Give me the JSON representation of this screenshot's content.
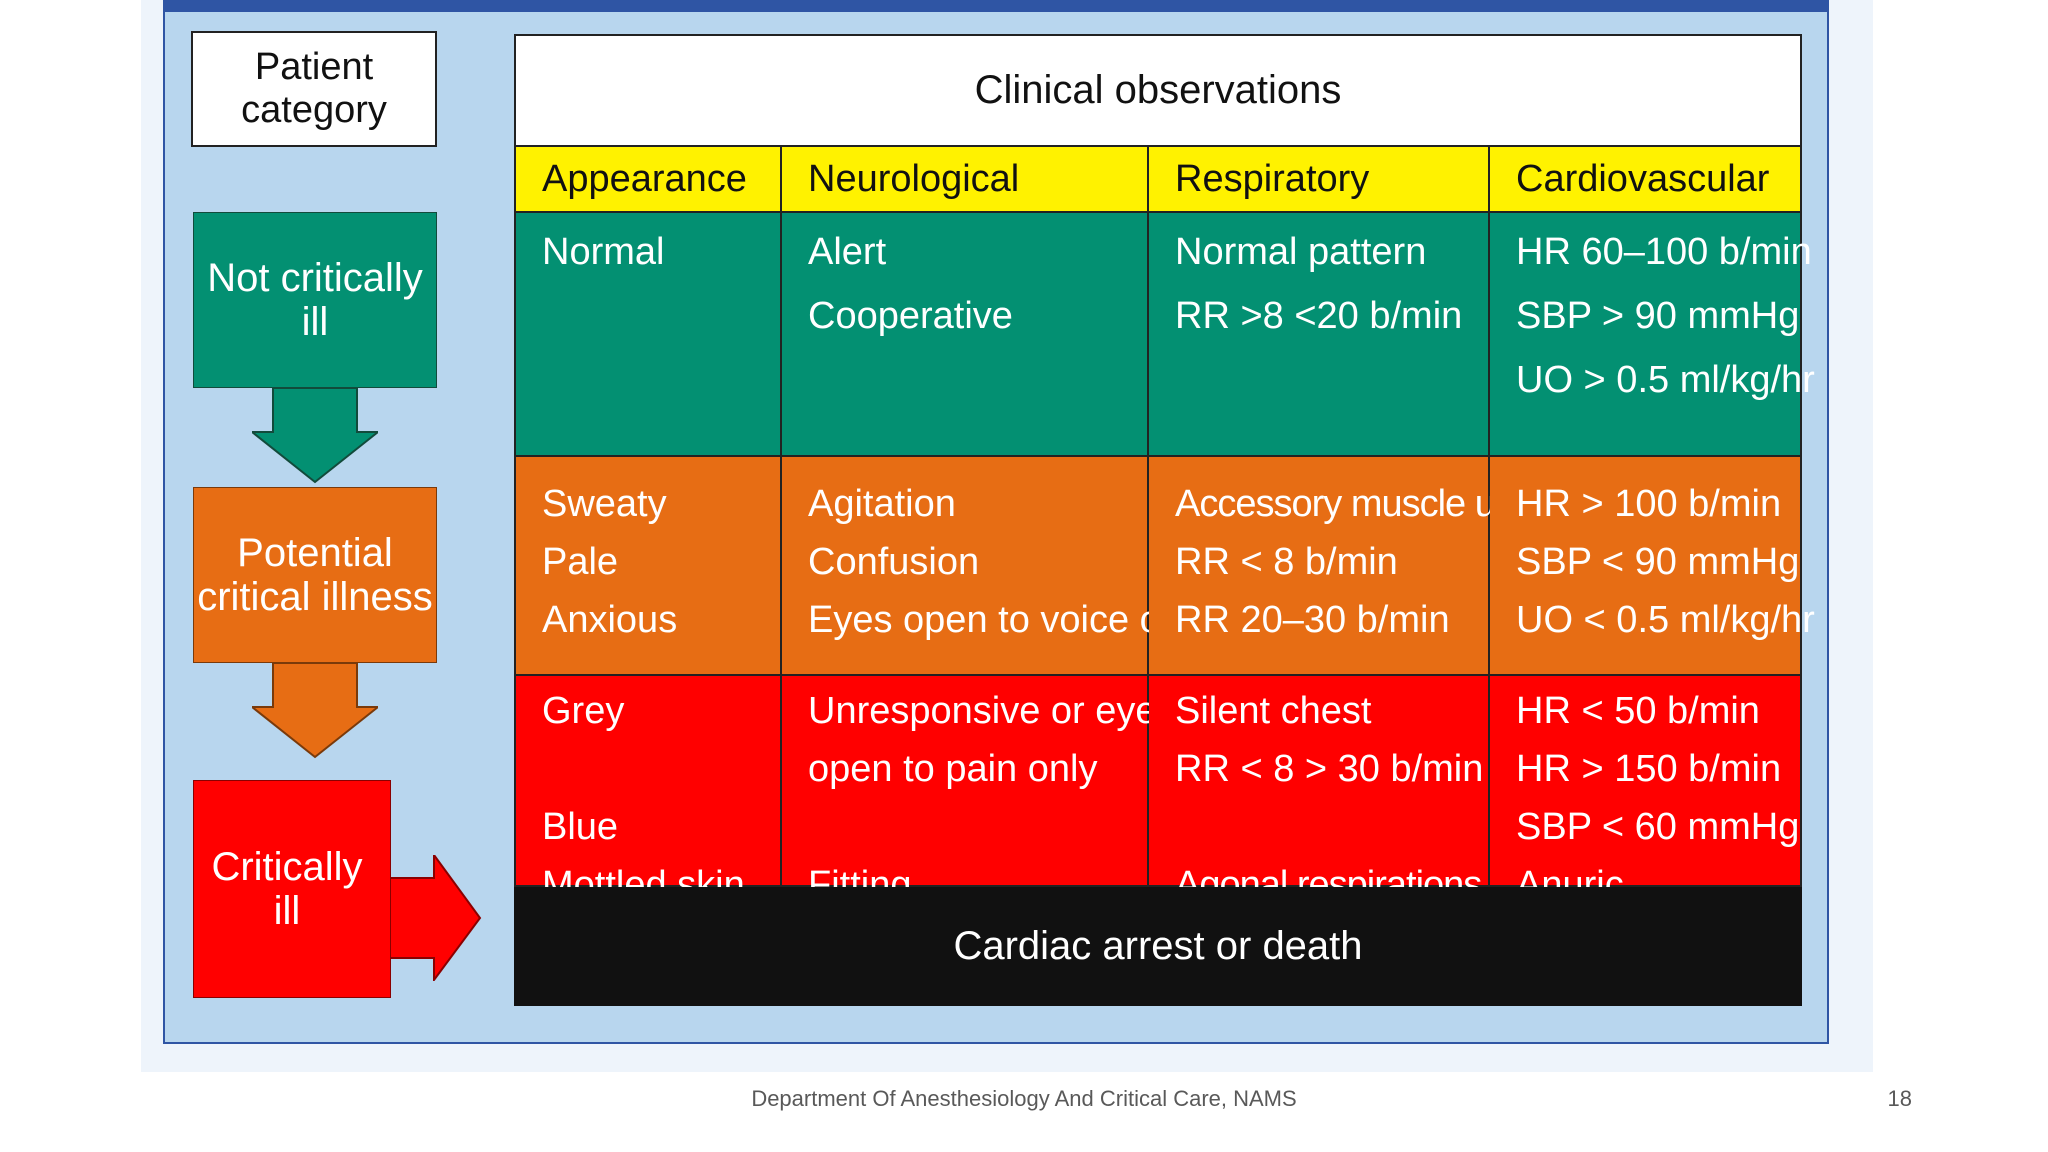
{
  "diagram": {
    "patient_category_label": "Patient category",
    "categories": [
      {
        "label": "Not critically ill",
        "color": "#039072"
      },
      {
        "label": "Potential critical illness",
        "color": "#e76d14"
      },
      {
        "label": "Critically ill",
        "color": "#ff0000"
      }
    ]
  },
  "table": {
    "title": "Clinical observations",
    "columns": [
      "Appearance",
      "Neurological",
      "Respiratory",
      "Cardiovascular"
    ],
    "header_color": "#fff200",
    "rows": [
      {
        "category": "Not critically ill",
        "cells": [
          [
            "Normal"
          ],
          [
            "Alert",
            "Cooperative"
          ],
          [
            "Normal pattern",
            "RR >8 <20 b/min"
          ],
          [
            "HR 60–100 b/min",
            "SBP > 90 mmHg",
            "UO > 0.5 ml/kg/hr"
          ]
        ]
      },
      {
        "category": "Potential critical illness",
        "cells": [
          [
            "Sweaty",
            "Pale",
            "Anxious"
          ],
          [
            "Agitation",
            "Confusion",
            "Eyes open to voice only"
          ],
          [
            "Accessory muscle use",
            "RR < 8 b/min",
            "RR 20–30 b/min"
          ],
          [
            "HR > 100 b/min",
            "SBP < 90 mmHg",
            "UO < 0.5 ml/kg/hr"
          ]
        ]
      },
      {
        "category": "Critically ill",
        "cells": [
          [
            "Grey",
            "Blue",
            "Mottled skin"
          ],
          [
            "Unresponsive or eyes",
            "open to pain only",
            "Fitting"
          ],
          [
            "Silent chest",
            "RR < 8 > 30 b/min",
            "Agonal respirations"
          ],
          [
            "HR < 50 b/min",
            "HR > 150 b/min",
            "SBP < 60 mmHg",
            "Anuric"
          ]
        ]
      }
    ],
    "final_row": "Cardiac arrest or death"
  },
  "footer": {
    "text": "Department Of Anesthesiology And Critical Care, NAMS",
    "page_number": "18"
  }
}
